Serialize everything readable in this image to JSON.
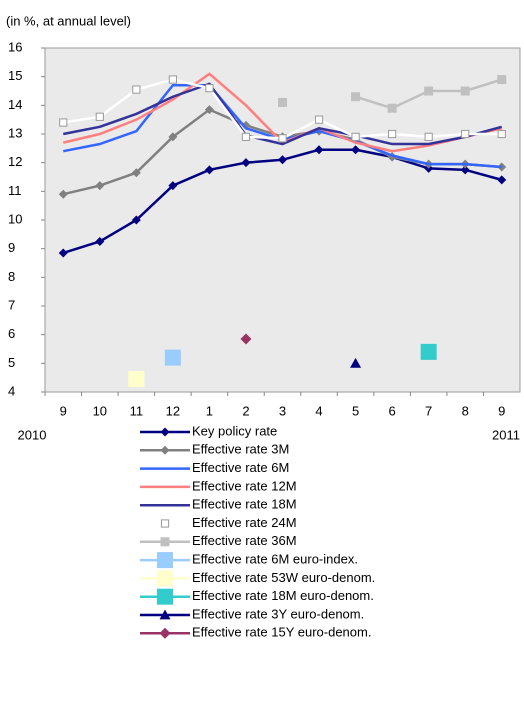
{
  "chart_data": {
    "type": "line",
    "y_label": "(in %, at annual level)",
    "categories": [
      "9",
      "10",
      "11",
      "12",
      "1",
      "2",
      "3",
      "4",
      "5",
      "6",
      "7",
      "8",
      "9"
    ],
    "year_labels": [
      "2010",
      "2011"
    ],
    "ylim": [
      4,
      16
    ],
    "yticks": [
      4,
      5,
      6,
      7,
      8,
      9,
      10,
      11,
      12,
      13,
      14,
      15,
      16
    ],
    "plot_background": "#eaeaea",
    "series": [
      {
        "name": "Key policy rate",
        "color": "#000080",
        "marker": "diamond",
        "values": [
          8.85,
          9.25,
          10.0,
          11.2,
          11.75,
          12.0,
          12.1,
          12.45,
          12.45,
          12.2,
          11.8,
          11.75,
          11.4
        ]
      },
      {
        "name": "Effective rate 3M",
        "color": "#808080",
        "marker": "diamond",
        "values": [
          10.9,
          11.2,
          11.65,
          12.9,
          13.85,
          13.3,
          12.9,
          13.1,
          12.8,
          12.2,
          11.95,
          11.95,
          11.85
        ]
      },
      {
        "name": "Effective rate 6M",
        "color": "#3366ff",
        "marker": "none",
        "values": [
          12.4,
          12.65,
          13.1,
          14.7,
          14.7,
          13.2,
          12.8,
          13.1,
          12.75,
          12.25,
          11.95,
          11.95,
          11.85
        ]
      },
      {
        "name": "Effective rate 12M",
        "color": "#ff7f7f",
        "marker": "none",
        "values": [
          12.7,
          13.0,
          13.5,
          14.2,
          15.1,
          14.0,
          12.7,
          13.2,
          12.7,
          12.4,
          12.6,
          12.9,
          13.2
        ]
      },
      {
        "name": "Effective rate 18M",
        "color": "#333399",
        "marker": "none",
        "values": [
          13.0,
          13.25,
          13.7,
          14.3,
          14.75,
          12.95,
          12.65,
          13.2,
          12.95,
          12.65,
          12.65,
          12.9,
          13.25
        ]
      },
      {
        "name": "Effective rate 24M",
        "color": "#ffffff",
        "marker": "open-square",
        "values": [
          13.4,
          13.6,
          14.55,
          14.9,
          14.6,
          12.9,
          12.85,
          13.5,
          12.9,
          13.0,
          12.9,
          13.0,
          13.0
        ]
      },
      {
        "name": "Effective rate 36M",
        "color": "#c0c0c0",
        "marker": "square",
        "values": [
          null,
          null,
          null,
          null,
          null,
          null,
          14.1,
          null,
          14.3,
          13.9,
          14.5,
          14.5,
          14.9
        ]
      },
      {
        "name": "Effective rate 6M euro-index.",
        "color": "#99ccff",
        "marker": "square",
        "values": [
          null,
          null,
          null,
          5.2,
          null,
          null,
          null,
          null,
          null,
          null,
          null,
          null,
          null
        ]
      },
      {
        "name": "Effective rate 53W euro-denom.",
        "color": "#ffffcc",
        "marker": "square",
        "values": [
          null,
          null,
          4.45,
          null,
          null,
          null,
          null,
          null,
          null,
          null,
          null,
          null,
          null
        ]
      },
      {
        "name": "Effective rate 18M euro-denom.",
        "color": "#33cccc",
        "marker": "square",
        "values": [
          null,
          null,
          null,
          null,
          null,
          null,
          null,
          null,
          null,
          null,
          5.4,
          null,
          null
        ]
      },
      {
        "name": "Effective rate 3Y euro-denom.",
        "color": "#000080",
        "marker": "triangle",
        "values": [
          null,
          null,
          null,
          null,
          null,
          null,
          null,
          null,
          5.0,
          null,
          null,
          null,
          null
        ]
      },
      {
        "name": "Effective rate 15Y euro-denom.",
        "color": "#993366",
        "marker": "diamond",
        "values": [
          null,
          null,
          null,
          null,
          null,
          5.85,
          null,
          null,
          null,
          null,
          null,
          null,
          null
        ]
      }
    ]
  }
}
